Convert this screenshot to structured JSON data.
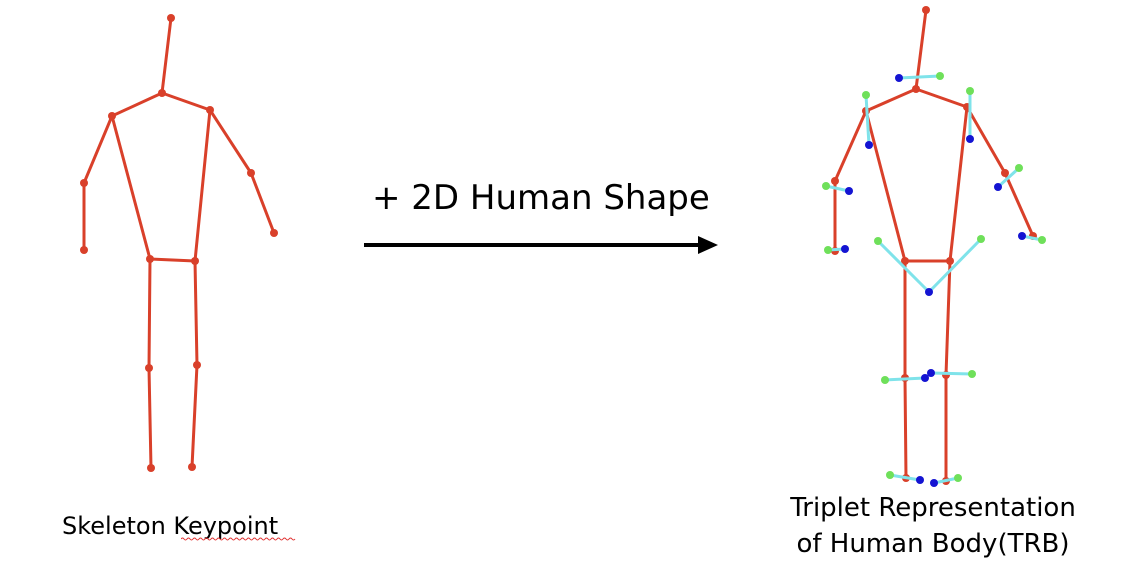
{
  "colors": {
    "skeleton": "#d9402a",
    "shape_line": "#7fe3ea",
    "contour_outer": "#6fe05a",
    "contour_inner": "#1414d2",
    "arrow": "#000000"
  },
  "labels": {
    "skeleton_keypoint": "Skeleton Keypoint",
    "arrow_text": "+ 2D Human Shape",
    "trb_line1": "Triplet Representation",
    "trb_line2": "of Human Body(TRB)"
  }
}
